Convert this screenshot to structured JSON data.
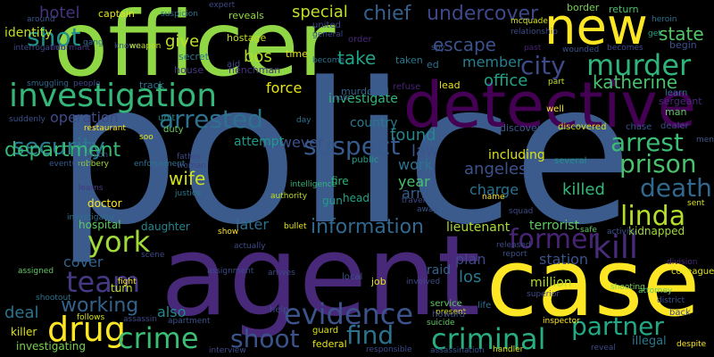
{
  "words": [
    {
      "text": "police",
      "color": "#3b5b8c"
    },
    {
      "text": "agent",
      "color": "#482878"
    },
    {
      "text": "officer",
      "color": "#8fd744"
    },
    {
      "text": "case",
      "color": "#fde725"
    },
    {
      "text": "detective",
      "color": "#440154"
    },
    {
      "text": "investigation",
      "color": "#35b779"
    },
    {
      "text": "new",
      "color": "#fde725"
    },
    {
      "text": "murder",
      "color": "#2fb47c"
    },
    {
      "text": "city",
      "color": "#3e4a89"
    },
    {
      "text": "drug",
      "color": "#fde725"
    },
    {
      "text": "criminal",
      "color": "#29af7f"
    },
    {
      "text": "crime",
      "color": "#3dbc74"
    },
    {
      "text": "evidence",
      "color": "#3b528b"
    },
    {
      "text": "kill",
      "color": "#472c7a"
    },
    {
      "text": "former",
      "color": "#482475"
    },
    {
      "text": "arrest",
      "color": "#3dbc74"
    },
    {
      "text": "prison",
      "color": "#4ac16d"
    },
    {
      "text": "linda",
      "color": "#b5de2b"
    },
    {
      "text": "york",
      "color": "#a0da39"
    },
    {
      "text": "death",
      "color": "#31688e"
    },
    {
      "text": "team",
      "color": "#443983"
    },
    {
      "text": "shoot",
      "color": "#3b528b"
    },
    {
      "text": "find",
      "color": "#2c728e"
    },
    {
      "text": "partner",
      "color": "#22a884"
    },
    {
      "text": "security",
      "color": "#2a788e"
    },
    {
      "text": "suspect",
      "color": "#38598c"
    },
    {
      "text": "department",
      "color": "#38b977"
    },
    {
      "text": "shot",
      "color": "#21918c"
    },
    {
      "text": "arrested",
      "color": "#2d718e"
    },
    {
      "text": "information",
      "color": "#31688e"
    },
    {
      "text": "working",
      "color": "#33638d"
    },
    {
      "text": "state",
      "color": "#54c568"
    },
    {
      "text": "chief",
      "color": "#34608d"
    },
    {
      "text": "undercover",
      "color": "#3e4989"
    },
    {
      "text": "escape",
      "color": "#3b528b"
    },
    {
      "text": "katherine",
      "color": "#48c16e"
    },
    {
      "text": "office",
      "color": "#20a386"
    },
    {
      "text": "special",
      "color": "#c0df25"
    },
    {
      "text": "take",
      "color": "#20a386"
    },
    {
      "text": "bos",
      "color": "#b5de2b"
    },
    {
      "text": "give",
      "color": "#bddf26"
    },
    {
      "text": "member",
      "color": "#277f8e"
    },
    {
      "text": "force",
      "color": "#e5e419"
    },
    {
      "text": "work",
      "color": "#2c728e"
    },
    {
      "text": "law",
      "color": "#39568c"
    },
    {
      "text": "year",
      "color": "#4ac16d"
    },
    {
      "text": "wife",
      "color": "#d0e11c"
    },
    {
      "text": "killed",
      "color": "#35b779"
    },
    {
      "text": "charge",
      "color": "#2c728e"
    },
    {
      "text": "angeles",
      "color": "#3b528b"
    },
    {
      "text": "found",
      "color": "#25858e"
    },
    {
      "text": "arm",
      "color": "#365d8d"
    },
    {
      "text": "los",
      "color": "#2a788e"
    },
    {
      "text": "plan",
      "color": "#3f4788"
    },
    {
      "text": "station",
      "color": "#3b528b"
    },
    {
      "text": "raid",
      "color": "#33638d"
    },
    {
      "text": "later",
      "color": "#2e6f8e"
    },
    {
      "text": "cover",
      "color": "#33638d"
    },
    {
      "text": "however",
      "color": "#3b528b"
    },
    {
      "text": "attempt",
      "color": "#1e9b8a"
    },
    {
      "text": "investigate",
      "color": "#31b57b"
    },
    {
      "text": "operation",
      "color": "#3e4a89"
    },
    {
      "text": "identity",
      "color": "#c2df23"
    },
    {
      "text": "hotel",
      "color": "#46337f"
    },
    {
      "text": "also",
      "color": "#23898e"
    },
    {
      "text": "deal",
      "color": "#2c728e"
    },
    {
      "text": "million",
      "color": "#b2dd2d"
    },
    {
      "text": "terrorist",
      "color": "#5ec962"
    },
    {
      "text": "including",
      "color": "#d8e219"
    },
    {
      "text": "country",
      "color": "#2a788e"
    },
    {
      "text": "lieutenant",
      "color": "#a8db34"
    },
    {
      "text": "kidnapped",
      "color": "#9fda3a"
    },
    {
      "text": "hospital",
      "color": "#5ec962"
    },
    {
      "text": "daughter",
      "color": "#25858e"
    },
    {
      "text": "doctor",
      "color": "#fde725"
    },
    {
      "text": "turn",
      "color": "#c0df25"
    },
    {
      "text": "killer",
      "color": "#dde318"
    },
    {
      "text": "investigating",
      "color": "#7ad151"
    },
    {
      "text": "head",
      "color": "#20a386"
    },
    {
      "text": "gun",
      "color": "#1f9e89"
    },
    {
      "text": "fire",
      "color": "#2fb47c"
    },
    {
      "text": "public",
      "color": "#1fa188"
    },
    {
      "text": "captain",
      "color": "#e2e418"
    },
    {
      "text": "reveals",
      "color": "#95d840"
    },
    {
      "text": "hostage",
      "color": "#c2df23"
    },
    {
      "text": "secret",
      "color": "#2a788e"
    },
    {
      "text": "house",
      "color": "#453781"
    },
    {
      "text": "henchman",
      "color": "#46327e"
    },
    {
      "text": "track",
      "color": "#2c728e"
    },
    {
      "text": "time",
      "color": "#e5e419"
    },
    {
      "text": "aid",
      "color": "#3e4a89"
    },
    {
      "text": "murdered",
      "color": "#34608d"
    },
    {
      "text": "refuse",
      "color": "#482173"
    },
    {
      "text": "lead",
      "color": "#e5e419"
    },
    {
      "text": "border",
      "color": "#7ad151"
    },
    {
      "text": "return",
      "color": "#4ac16d"
    },
    {
      "text": "sergeant",
      "color": "#482878"
    },
    {
      "text": "man",
      "color": "#5ec962"
    },
    {
      "text": "learn",
      "color": "#2c728e"
    },
    {
      "text": "chase",
      "color": "#3b528b"
    },
    {
      "text": "dealer",
      "color": "#3e4a89"
    },
    {
      "text": "begin",
      "color": "#3b528b"
    },
    {
      "text": "discovers",
      "color": "#375a8c"
    },
    {
      "text": "discovered",
      "color": "#d8e219"
    },
    {
      "text": "well",
      "color": "#fde725"
    },
    {
      "text": "several",
      "color": "#21918c"
    },
    {
      "text": "restaurant",
      "color": "#fde725"
    },
    {
      "text": "duty",
      "color": "#6ccd5a"
    },
    {
      "text": "unit",
      "color": "#228c8d"
    },
    {
      "text": "robbery",
      "color": "#a2da37"
    },
    {
      "text": "father",
      "color": "#404688"
    },
    {
      "text": "woman",
      "color": "#3f4788"
    },
    {
      "text": "justice",
      "color": "#2a788e"
    },
    {
      "text": "learns",
      "color": "#453882"
    },
    {
      "text": "investigator",
      "color": "#2e6e8e"
    },
    {
      "text": "enforcement",
      "color": "#2c728e"
    },
    {
      "text": "eventually",
      "color": "#365c8d"
    },
    {
      "text": "interrogation",
      "color": "#3e4989"
    },
    {
      "text": "informant",
      "color": "#46337f"
    },
    {
      "text": "smuggling",
      "color": "#31688e"
    },
    {
      "text": "people",
      "color": "#3e4a89"
    },
    {
      "text": "around",
      "color": "#3a548c"
    },
    {
      "text": "gang",
      "color": "#2e6e8e"
    },
    {
      "text": "known",
      "color": "#3b528b"
    },
    {
      "text": "weapon",
      "color": "#c2df23"
    },
    {
      "text": "suspicion",
      "color": "#2c728e"
    },
    {
      "text": "united",
      "color": "#3e4a89"
    },
    {
      "text": "general",
      "color": "#3f4788"
    },
    {
      "text": "become",
      "color": "#2c728e"
    },
    {
      "text": "order",
      "color": "#482878"
    },
    {
      "text": "spy",
      "color": "#3b528b"
    },
    {
      "text": "taken",
      "color": "#2a788e"
    },
    {
      "text": "mcquade",
      "color": "#d8e219"
    },
    {
      "text": "relationship",
      "color": "#3e4a89"
    },
    {
      "text": "get",
      "color": "#20a386"
    },
    {
      "text": "heroin",
      "color": "#2c728e"
    },
    {
      "text": "becomes",
      "color": "#404688"
    },
    {
      "text": "wounded",
      "color": "#3b528b"
    },
    {
      "text": "past",
      "color": "#482173"
    },
    {
      "text": "part",
      "color": "#c2df23"
    },
    {
      "text": "bullet",
      "color": "#e5e419"
    },
    {
      "text": "show",
      "color": "#fde725"
    },
    {
      "text": "actually",
      "color": "#3e4a89"
    },
    {
      "text": "scene",
      "color": "#3e4989"
    },
    {
      "text": "assignment",
      "color": "#3e4a89"
    },
    {
      "text": "fight",
      "color": "#fde725"
    },
    {
      "text": "assigned",
      "color": "#5ec962"
    },
    {
      "text": "suddenly",
      "color": "#3b528b"
    },
    {
      "text": "shootout",
      "color": "#2c728e"
    },
    {
      "text": "follows",
      "color": "#d8e219"
    },
    {
      "text": "assassin",
      "color": "#3e4a89"
    },
    {
      "text": "apartment",
      "color": "#3b528b"
    },
    {
      "text": "interview",
      "color": "#3e4a89"
    },
    {
      "text": "guard",
      "color": "#d8e219"
    },
    {
      "text": "federal",
      "color": "#e5e419"
    },
    {
      "text": "responsible",
      "color": "#3e4a89"
    },
    {
      "text": "assassination",
      "color": "#3b528b"
    },
    {
      "text": "handler",
      "color": "#d8e219"
    },
    {
      "text": "despite",
      "color": "#fde725"
    },
    {
      "text": "reveal",
      "color": "#3e4a89"
    },
    {
      "text": "illegal",
      "color": "#2a788e"
    },
    {
      "text": "inspector",
      "color": "#fde725"
    },
    {
      "text": "shooting",
      "color": "#7ad151"
    },
    {
      "text": "district",
      "color": "#3b528b"
    },
    {
      "text": "back",
      "color": "#3e4a89"
    },
    {
      "text": "colleague",
      "color": "#e5e419"
    },
    {
      "text": "attorney",
      "color": "#5ec962"
    },
    {
      "text": "division",
      "color": "#482878"
    },
    {
      "text": "sent",
      "color": "#d8e219"
    },
    {
      "text": "superior",
      "color": "#3e4a89"
    },
    {
      "text": "present",
      "color": "#d8e219"
    },
    {
      "text": "suicide",
      "color": "#5ec962"
    },
    {
      "text": "howard",
      "color": "#3e4a89"
    },
    {
      "text": "service",
      "color": "#5ec962"
    },
    {
      "text": "local",
      "color": "#3b528b"
    },
    {
      "text": "involved",
      "color": "#3e4a89"
    },
    {
      "text": "life",
      "color": "#2c728e"
    },
    {
      "text": "released",
      "color": "#3e4a89"
    },
    {
      "text": "report",
      "color": "#3b528b"
    },
    {
      "text": "safe",
      "color": "#5ec962"
    },
    {
      "text": "activity",
      "color": "#3b528b"
    },
    {
      "text": "squad",
      "color": "#3e4a89"
    },
    {
      "text": "name",
      "color": "#fde725"
    },
    {
      "text": "travel",
      "color": "#3e4a89"
    },
    {
      "text": "away",
      "color": "#3b528b"
    },
    {
      "text": "intelligence",
      "color": "#31b57b"
    },
    {
      "text": "authority",
      "color": "#c2df23"
    },
    {
      "text": "mole",
      "color": "#3e4a89"
    },
    {
      "text": "day",
      "color": "#2c728e"
    },
    {
      "text": "arrives",
      "color": "#3e4a89"
    },
    {
      "text": "job",
      "color": "#e5e419"
    },
    {
      "text": "help",
      "color": "#3e4a89"
    },
    {
      "text": "men",
      "color": "#3b528b"
    },
    {
      "text": "expert",
      "color": "#3e4a89"
    },
    {
      "text": "soo",
      "color": "#e5e419"
    },
    {
      "text": "union",
      "color": "#3e4a89"
    },
    {
      "text": "ed",
      "color": "#2c728e"
    }
  ]
}
